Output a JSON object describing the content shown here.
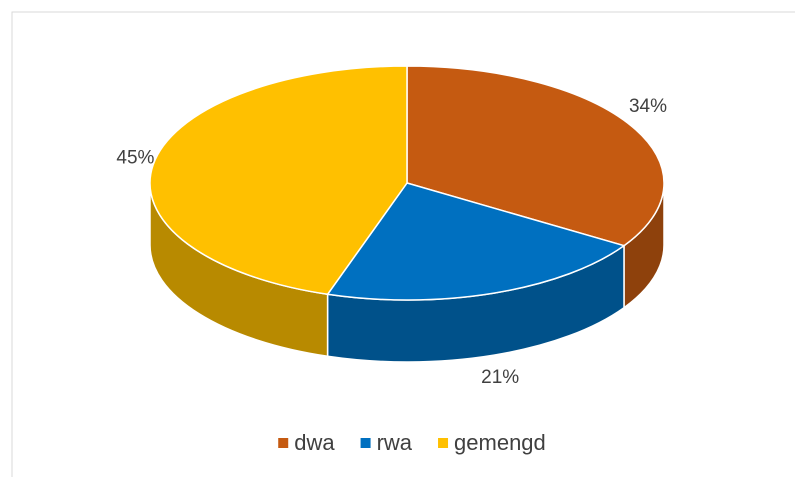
{
  "chart_data": {
    "type": "pie",
    "style": "3d",
    "categories": [
      "dwa",
      "rwa",
      "gemengd"
    ],
    "values": [
      34,
      21,
      45
    ],
    "value_labels": [
      "34%",
      "21%",
      "45%"
    ],
    "colors": [
      "#c55a11",
      "#0070c0",
      "#ffc000"
    ],
    "legend": "bottom"
  }
}
